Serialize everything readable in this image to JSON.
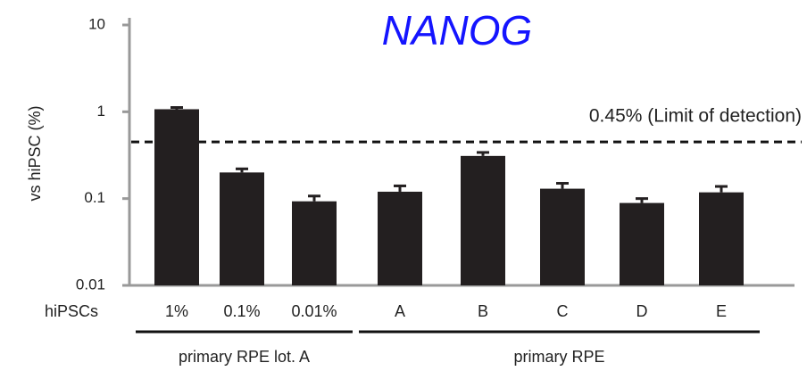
{
  "chart_data": {
    "type": "bar",
    "title": "NANOG",
    "y_label": "vs hiPSC (%)",
    "x_label": "hiPSCs",
    "categories": [
      "1%",
      "0.1%",
      "0.01%",
      "A",
      "B",
      "C",
      "D",
      "E"
    ],
    "category_groups": [
      "primary RPE lot. A",
      "primary RPE lot. A",
      "primary RPE lot. A",
      "primary RPE",
      "primary RPE",
      "primary RPE",
      "primary RPE",
      "primary RPE"
    ],
    "values": [
      1.07,
      0.2,
      0.093,
      0.12,
      0.31,
      0.13,
      0.089,
      0.118
    ],
    "errors": [
      0.05,
      0.02,
      0.014,
      0.02,
      0.03,
      0.02,
      0.011,
      0.02
    ],
    "color": "#231f20",
    "y_scale": "log",
    "ylim": [
      0.01,
      10
    ],
    "yticks": [
      0.01,
      0.1,
      1,
      10
    ],
    "threshold": {
      "value": 0.45,
      "label": "0.45% (Limit of detection)"
    }
  }
}
